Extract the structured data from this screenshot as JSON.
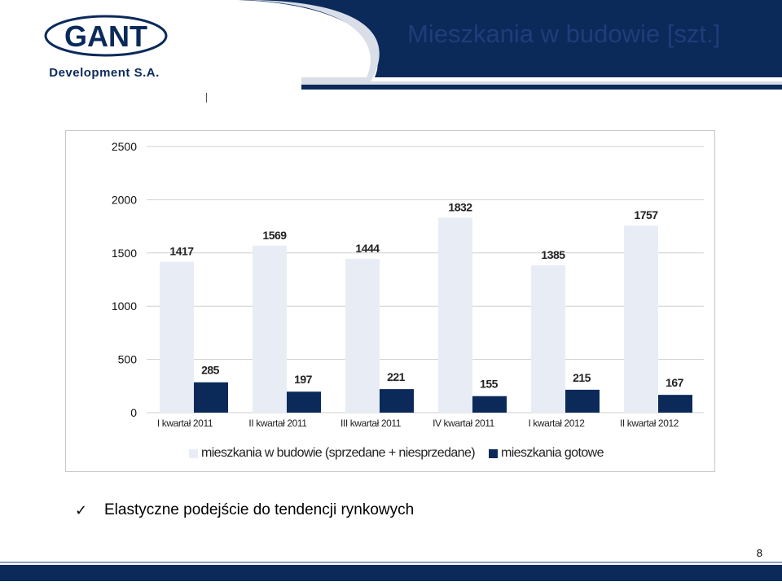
{
  "slide": {
    "title": "Mieszkania w budowie [szt.]",
    "logo_main": "GANT",
    "logo_sub": "Development S.A.",
    "bullet": "Elastyczne podejście do tendencji rynkowych",
    "bullet_icon": "check-icon",
    "page_number": "8"
  },
  "colors": {
    "navy": "#0b2a5a",
    "light_bar": "#e8edf5",
    "title": "#1f3d7a",
    "header_curve": "#f2f4f8"
  },
  "chart_data": {
    "type": "bar",
    "categories": [
      "I kwartał 2011",
      "II kwartał 2011",
      "III kwartał 2011",
      "IV kwartał 2011",
      "I kwartał 2012",
      "II kwartał 2012"
    ],
    "series": [
      {
        "name": "mieszkania w budowie (sprzedane + niesprzedane)",
        "values": [
          1417,
          1569,
          1444,
          1832,
          1385,
          1757
        ],
        "color": "#e8edf5"
      },
      {
        "name": "mieszkania gotowe",
        "values": [
          285,
          197,
          221,
          155,
          215,
          167
        ],
        "color": "#0b2a5a"
      }
    ],
    "yticks": [
      0,
      500,
      1000,
      1500,
      2000,
      2500
    ],
    "ylim": [
      0,
      2500
    ],
    "grid": true,
    "legend": "bottom"
  }
}
